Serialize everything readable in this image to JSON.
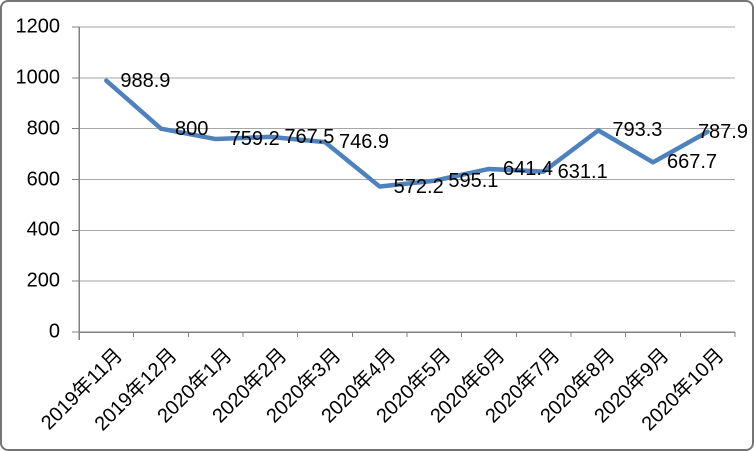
{
  "chart_data": {
    "type": "line",
    "title": "",
    "xlabel": "",
    "ylabel": "",
    "categories": [
      "2019年11月",
      "2019年12月",
      "2020年1月",
      "2020年2月",
      "2020年3月",
      "2020年4月",
      "2020年5月",
      "2020年6月",
      "2020年7月",
      "2020年8月",
      "2020年9月",
      "2020年10月"
    ],
    "values": [
      988.9,
      800,
      759.2,
      767.5,
      746.9,
      572.2,
      595.1,
      641.4,
      631.1,
      793.3,
      667.7,
      787.9
    ],
    "point_labels": [
      "988.9",
      "800",
      "759.2",
      "767.5",
      "746.9",
      "572.2",
      "595.1",
      "641.4",
      "631.1",
      "793.3",
      "667.7",
      "787.9"
    ],
    "ylim": [
      0,
      1200
    ],
    "yticks": [
      0,
      200,
      400,
      600,
      800,
      1000,
      1200
    ],
    "ytick_labels": [
      "0",
      "200",
      "400",
      "600",
      "800",
      "1000",
      "1200"
    ],
    "grid": "horizontal",
    "legend_position": "none",
    "line_color": "#4F81BD",
    "grid_color": "#A6A6A6",
    "axis_color": "#808080",
    "text_color": "#000000",
    "x_tick_label_rotation_deg": 45
  }
}
